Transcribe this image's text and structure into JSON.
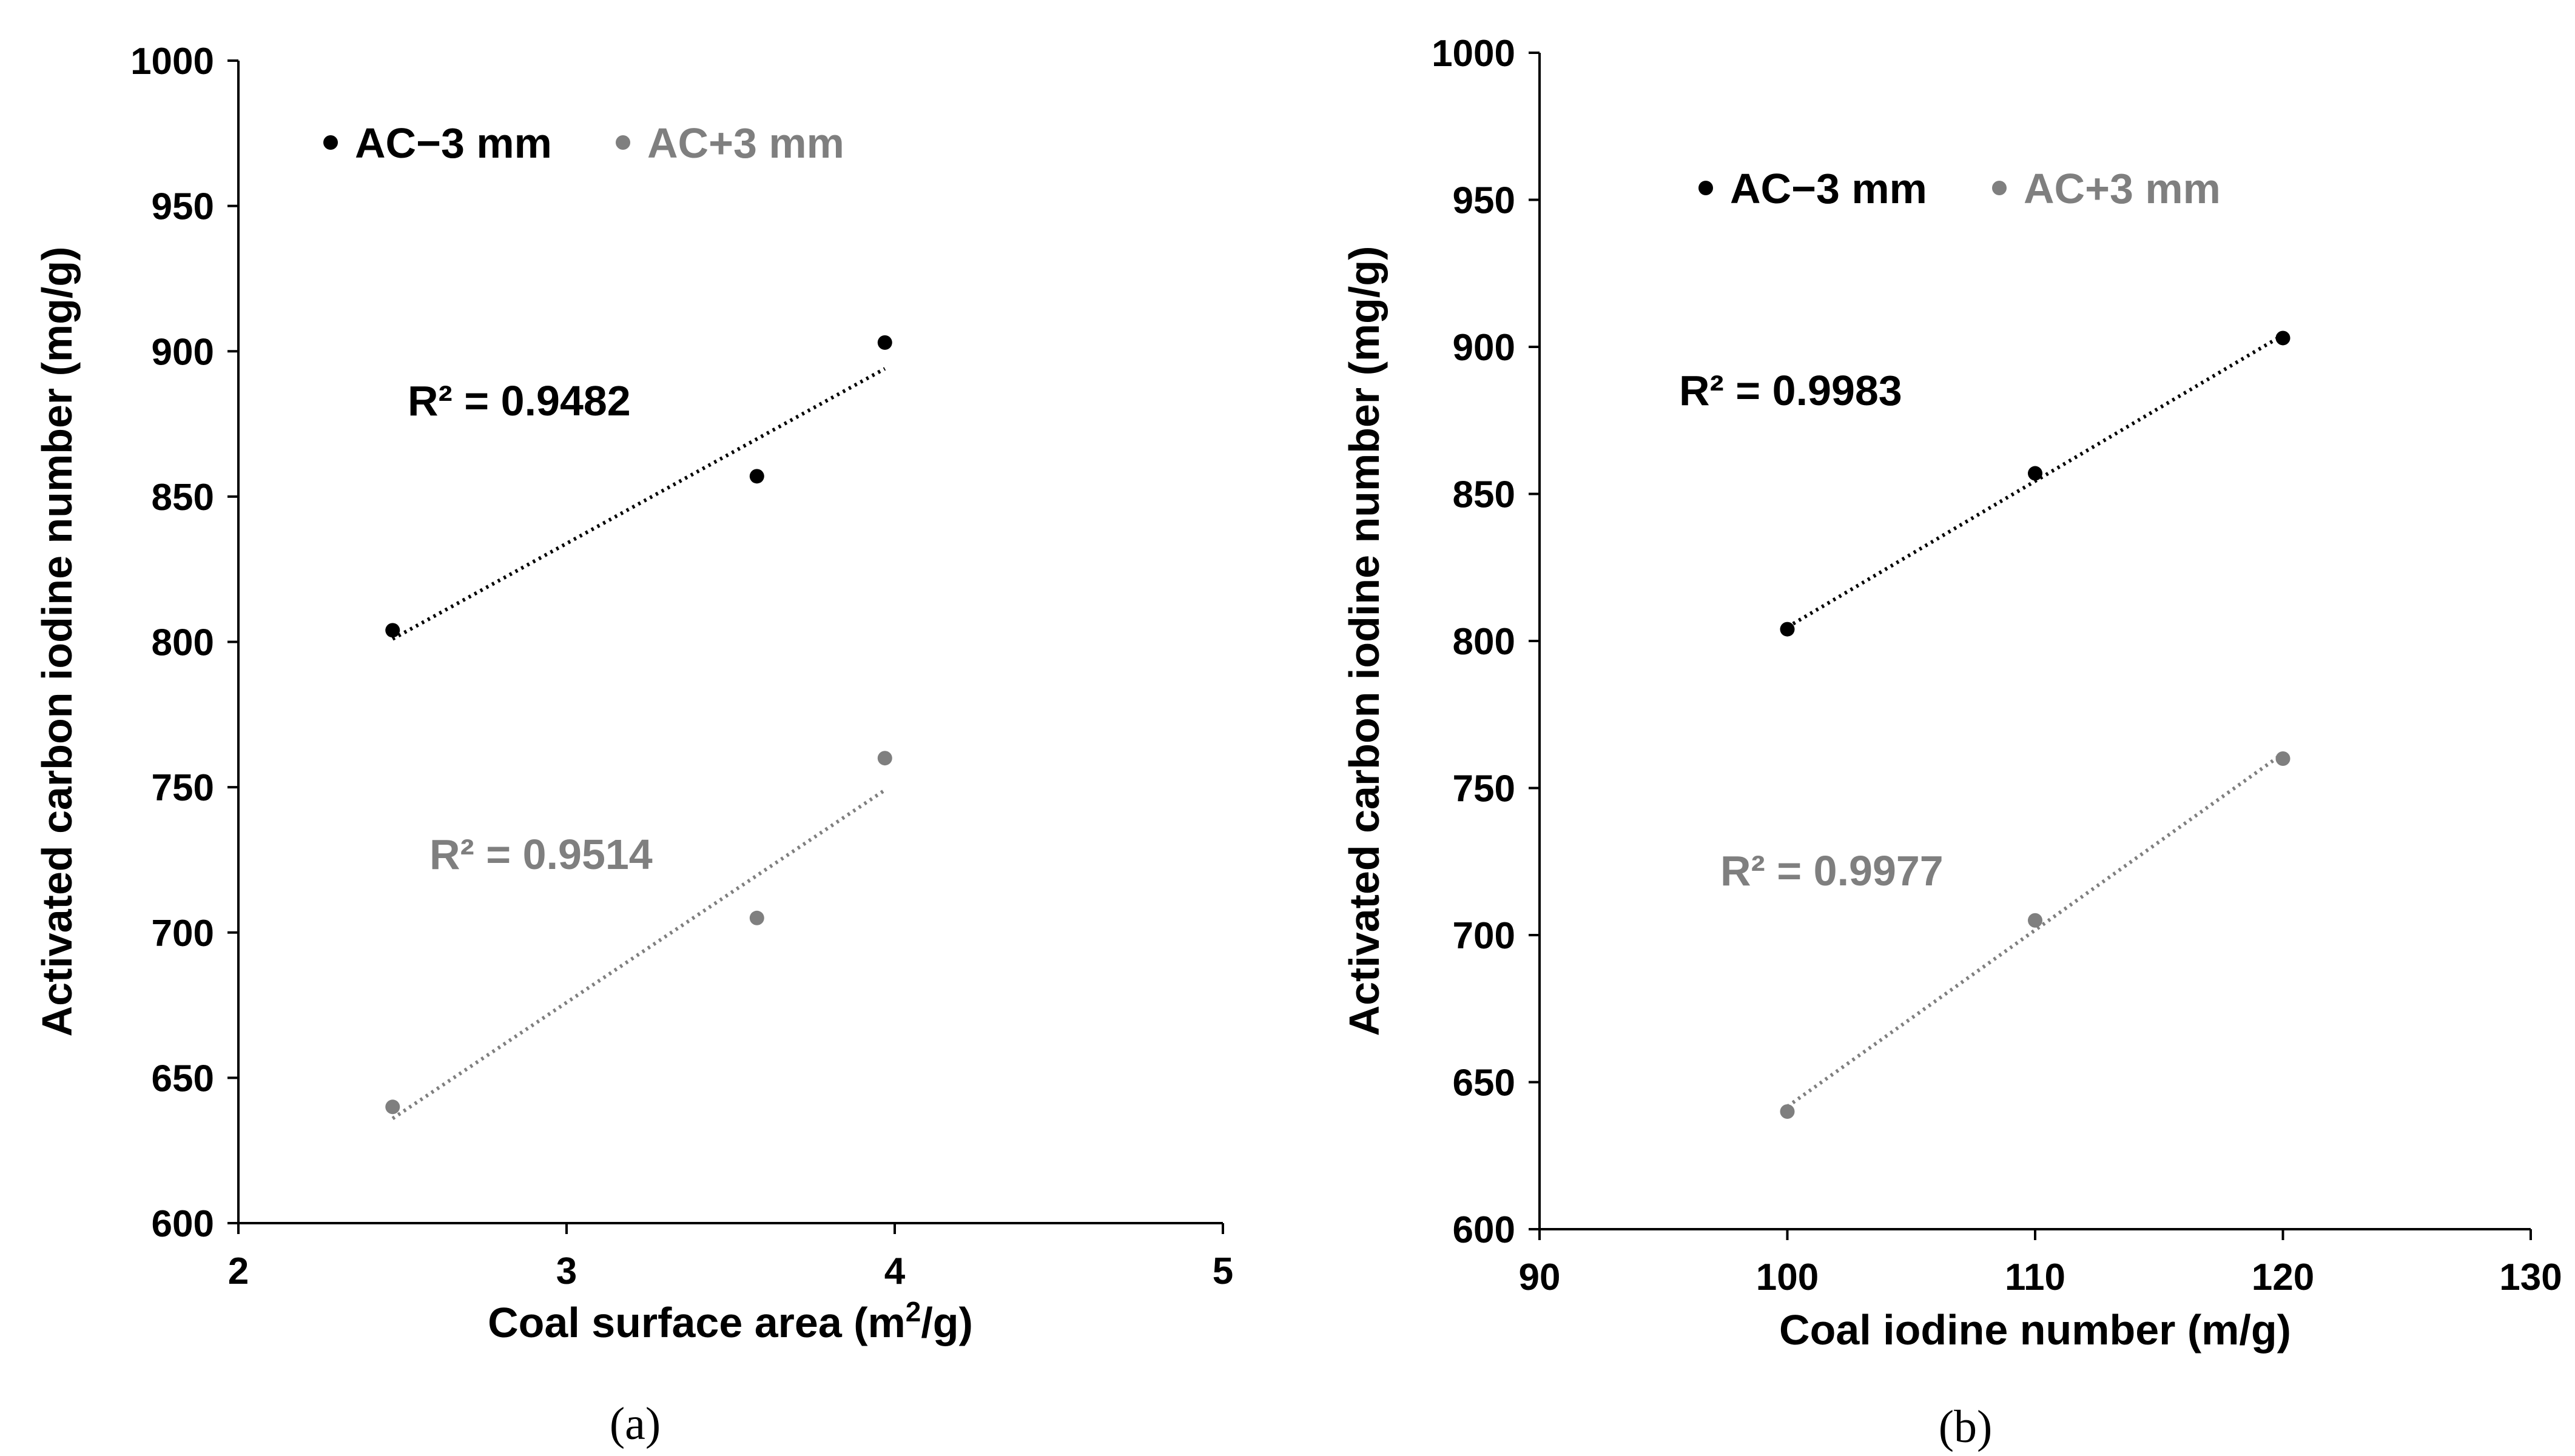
{
  "chart_data": [
    {
      "type": "scatter",
      "panel_label": "(a)",
      "xlabel_main": "Coal surface area (m",
      "xlabel_sup": "2",
      "xlabel_end": "/g)",
      "ylabel": "Activated carbon iodine number (mg/g)",
      "xlim": [
        2,
        5
      ],
      "ylim": [
        600,
        1000
      ],
      "xticks": [
        2,
        3,
        4,
        5
      ],
      "yticks": [
        600,
        650,
        700,
        750,
        800,
        850,
        900,
        950,
        1000
      ],
      "legend_position": "top-left",
      "series": [
        {
          "name": "AC−3 mm",
          "color": "#000000",
          "x": [
            2.47,
            3.58,
            3.97
          ],
          "y": [
            804,
            857,
            903
          ],
          "trendline": {
            "x": [
              2.47,
              3.97
            ],
            "y": [
              801,
              894
            ]
          },
          "r2_label": "R² = 0.9482"
        },
        {
          "name": "AC+3 mm",
          "color": "#7f7f7f",
          "x": [
            2.47,
            3.58,
            3.97
          ],
          "y": [
            640,
            705,
            760
          ],
          "trendline": {
            "x": [
              2.47,
              3.97
            ],
            "y": [
              636,
              749
            ]
          },
          "r2_label": "R² = 0.9514"
        }
      ]
    },
    {
      "type": "scatter",
      "panel_label": "(b)",
      "xlabel_main": "Coal iodine number (m/g)",
      "xlabel_sup": "",
      "xlabel_end": "",
      "ylabel": "Activated carbon iodine number (mg/g)",
      "xlim": [
        90,
        130
      ],
      "ylim": [
        600,
        1000
      ],
      "xticks": [
        90,
        100,
        110,
        120,
        130
      ],
      "yticks": [
        600,
        650,
        700,
        750,
        800,
        850,
        900,
        950,
        1000
      ],
      "legend_position": "top-left",
      "series": [
        {
          "name": "AC−3 mm",
          "color": "#000000",
          "x": [
            100,
            110,
            120
          ],
          "y": [
            804,
            857,
            903
          ],
          "trendline": {
            "x": [
              100,
              120
            ],
            "y": [
              804.7,
              904.0
            ]
          },
          "r2_label": "R² = 0.9983"
        },
        {
          "name": "AC+3 mm",
          "color": "#7f7f7f",
          "x": [
            100,
            110,
            120
          ],
          "y": [
            640,
            705,
            760
          ],
          "trendline": {
            "x": [
              100,
              120
            ],
            "y": [
              641.7,
              761.7
            ]
          },
          "r2_label": "R² = 0.9977"
        }
      ]
    }
  ]
}
